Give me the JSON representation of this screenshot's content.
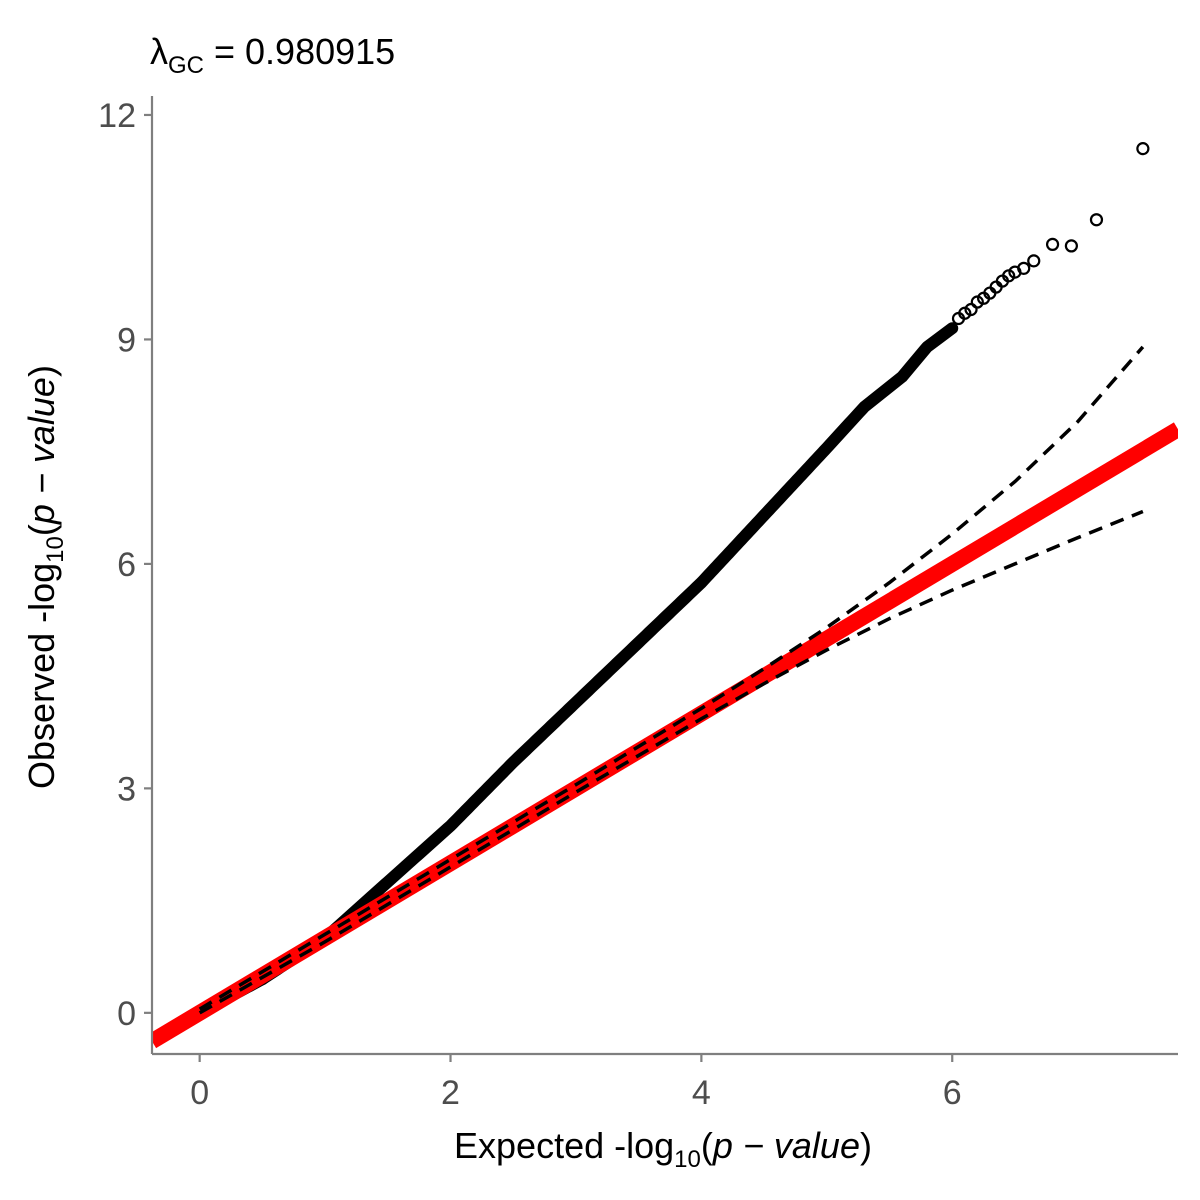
{
  "chart_data": {
    "type": "scatter",
    "title": {
      "lambda": "λ",
      "subscript": "GC",
      "equals": " = ",
      "value": "0.980915"
    },
    "xlabel": {
      "prefix": "Expected -log",
      "subscript": "10",
      "open": "(",
      "italic": "p − value",
      "close": ")"
    },
    "ylabel": {
      "prefix": "Observed -log",
      "subscript": "10",
      "open": "(",
      "italic": "p − value",
      "close": ")"
    },
    "xlim": [
      -0.38,
      7.8
    ],
    "ylim": [
      -0.55,
      12.2
    ],
    "xticks": [
      0,
      2,
      4,
      6
    ],
    "yticks": [
      0,
      3,
      6,
      9,
      12
    ],
    "grid": false,
    "reference_line": {
      "slope": 1,
      "intercept": 0,
      "color": "#ff0000"
    },
    "confidence_band": {
      "x": [
        0,
        1,
        2,
        3,
        4,
        4.5,
        5,
        5.5,
        6,
        6.5,
        7,
        7.52
      ],
      "upper": [
        0.05,
        1.05,
        2.05,
        3.05,
        4.07,
        4.6,
        5.15,
        5.75,
        6.4,
        7.1,
        7.9,
        8.9
      ],
      "lower": [
        0.0,
        0.95,
        1.95,
        2.95,
        3.93,
        4.4,
        4.85,
        5.27,
        5.65,
        6.0,
        6.35,
        6.7
      ]
    },
    "observed_curve": {
      "x": [
        0,
        0.5,
        1.0,
        1.5,
        2.0,
        2.5,
        3.0,
        3.5,
        4.0,
        4.5,
        5.0,
        5.3,
        5.6,
        5.8,
        6.0
      ],
      "y": [
        0,
        0.45,
        1.0,
        1.75,
        2.5,
        3.35,
        4.15,
        4.95,
        5.75,
        6.65,
        7.55,
        8.1,
        8.5,
        8.9,
        9.15
      ]
    },
    "outlier_points": {
      "x": [
        6.05,
        6.1,
        6.15,
        6.2,
        6.25,
        6.3,
        6.35,
        6.4,
        6.45,
        6.5,
        6.57,
        6.65,
        6.8,
        6.95,
        7.15,
        7.52
      ],
      "y": [
        9.28,
        9.35,
        9.4,
        9.5,
        9.55,
        9.62,
        9.7,
        9.78,
        9.85,
        9.9,
        9.95,
        10.05,
        10.27,
        10.25,
        10.6,
        11.55
      ]
    }
  }
}
